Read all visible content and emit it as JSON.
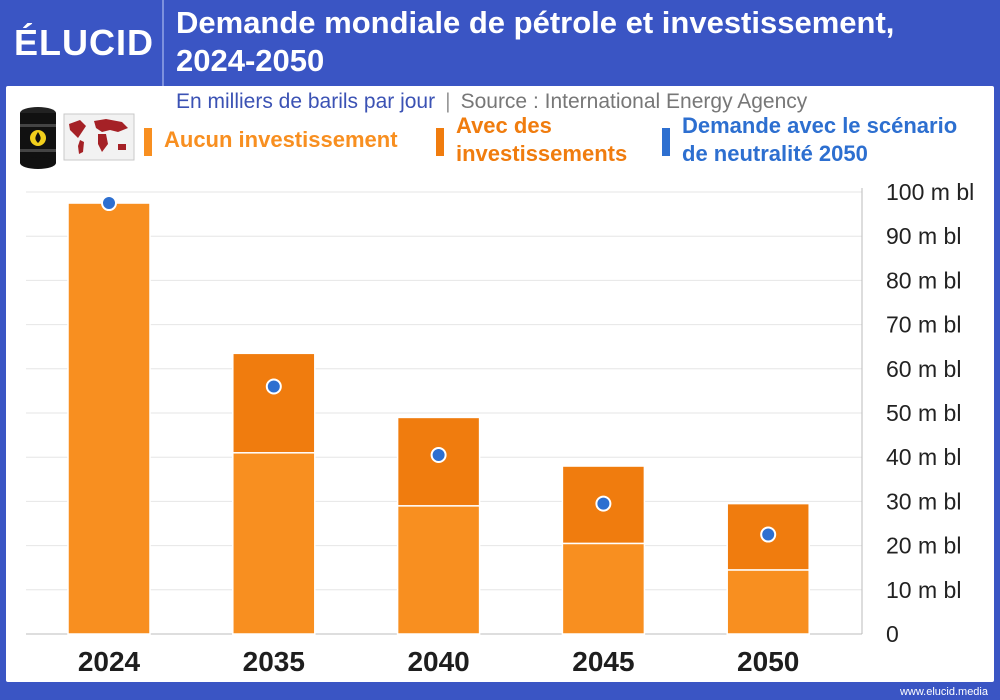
{
  "header": {
    "logo": "ÉLUCID",
    "title_line1": "Demande mondiale de pétrole et investissement,",
    "title_line2": "2024-2050"
  },
  "subtitle": {
    "unit": "En milliers de barils par jour",
    "source": "Source : International Energy Agency"
  },
  "legend": [
    {
      "label": "Aucun investissement",
      "color": "#f88f20"
    },
    {
      "label_line1": "Avec des",
      "label_line2": "investissements",
      "color": "#f07c0e"
    },
    {
      "label_line1": "Demande avec le scénario",
      "label_line2": "de neutralité 2050",
      "color": "#2d6fd0"
    }
  ],
  "footer": "www.elucid.media",
  "colors": {
    "no_investment": "#f88f20",
    "with_investment": "#f07c0e",
    "net_zero": "#2d6fd0"
  },
  "chart_data": {
    "type": "bar",
    "stacked": true,
    "categories": [
      "2024",
      "2035",
      "2040",
      "2045",
      "2050"
    ],
    "series": [
      {
        "name": "Aucun investissement",
        "values": [
          97.5,
          41,
          29,
          20.5,
          14.5
        ]
      },
      {
        "name": "Avec des investissements",
        "values": [
          0,
          22.5,
          20,
          17.5,
          15
        ]
      }
    ],
    "points": {
      "name": "Demande avec le scénario de neutralité 2050",
      "values": [
        97.5,
        56,
        40.5,
        29.5,
        22.5
      ]
    },
    "yticks": [
      "0",
      "10 m bl",
      "20 m bl",
      "30 m bl",
      "40 m bl",
      "50 m bl",
      "60 m bl",
      "70 m bl",
      "80 m bl",
      "90 m bl",
      "100 m bl"
    ],
    "ylim": [
      0,
      100
    ],
    "grid": true,
    "y_axis_side": "right"
  }
}
